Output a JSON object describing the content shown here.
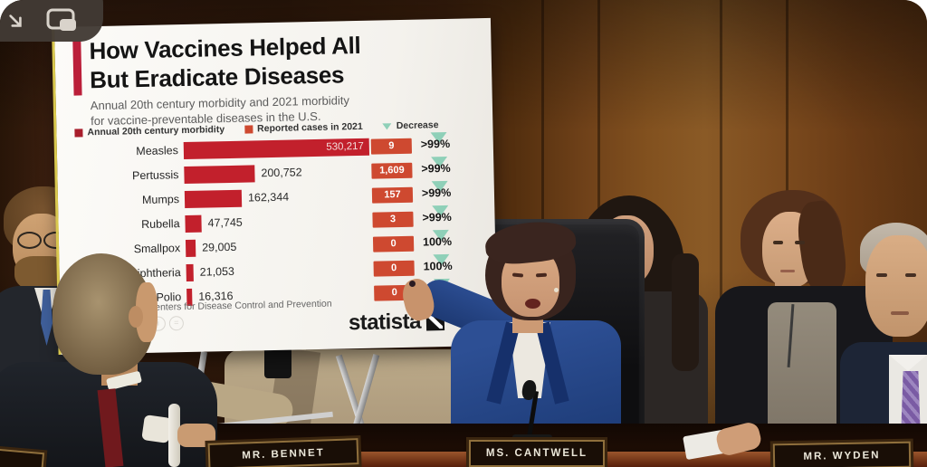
{
  "video_player": {
    "controls": [
      {
        "name": "resize-arrow-icon"
      },
      {
        "name": "picture-in-picture-icon"
      }
    ]
  },
  "poster": {
    "title_line1": "How Vaccines Helped All",
    "title_line2": "But Eradicate Diseases",
    "subtitle_line1": "Annual 20th century morbidity and 2021 morbidity",
    "subtitle_line2": "for vaccine-preventable diseases in the U.S.",
    "legend": [
      {
        "label": "Annual 20th century morbidity",
        "color": "#a81e2c"
      },
      {
        "label": "Reported cases in 2021",
        "color": "#ce4930"
      },
      {
        "label": "Decrease",
        "color": "#8fd0b8"
      }
    ],
    "source": "Source: Centers for Disease Control and Prevention",
    "logo_text": "statista"
  },
  "chart_data": {
    "type": "bar",
    "orientation": "horizontal",
    "title": "How Vaccines Helped All But Eradicate Diseases",
    "subtitle": "Annual 20th century morbidity and 2021 morbidity for vaccine-preventable diseases in the U.S.",
    "categories": [
      "Measles",
      "Pertussis",
      "Mumps",
      "Rubella",
      "Smallpox",
      "Diphtheria",
      "Polio"
    ],
    "series": [
      {
        "name": "Annual 20th century morbidity",
        "values": [
          530217,
          200752,
          162344,
          47745,
          29005,
          21053,
          16316
        ],
        "labels": [
          "530,217",
          "200,752",
          "162,344",
          "47,745",
          "29,005",
          "21,053",
          "16,316"
        ]
      },
      {
        "name": "Reported cases in 2021",
        "values": [
          9,
          1609,
          157,
          3,
          0,
          0,
          0
        ],
        "labels": [
          "9",
          "1,609",
          "157",
          "3",
          "0",
          "0",
          "0"
        ]
      },
      {
        "name": "Decrease",
        "labels": [
          ">99%",
          ">99%",
          ">99%",
          ">99%",
          "100%",
          "100%",
          "100%"
        ]
      }
    ],
    "xlim": [
      0,
      530217
    ],
    "legend_position": "top",
    "source": "Source: Centers for Disease Control and Prevention",
    "brand": "statista"
  },
  "nameplates": [
    {
      "text": "MR. BENNET"
    },
    {
      "text": "MS. CANTWELL"
    },
    {
      "text": "MR. WYDEN"
    }
  ],
  "colors": {
    "bar": "#c2202c",
    "badge_2021": "#ce4930",
    "decrease_triangle": "#8fd0b8",
    "accent_bar": "#bb1f3a",
    "poster_bg": "#f7f5f1",
    "wood_dark": "#3a1f0e",
    "wood_light": "#8a5a26",
    "table_edge": "#8a4a24"
  }
}
